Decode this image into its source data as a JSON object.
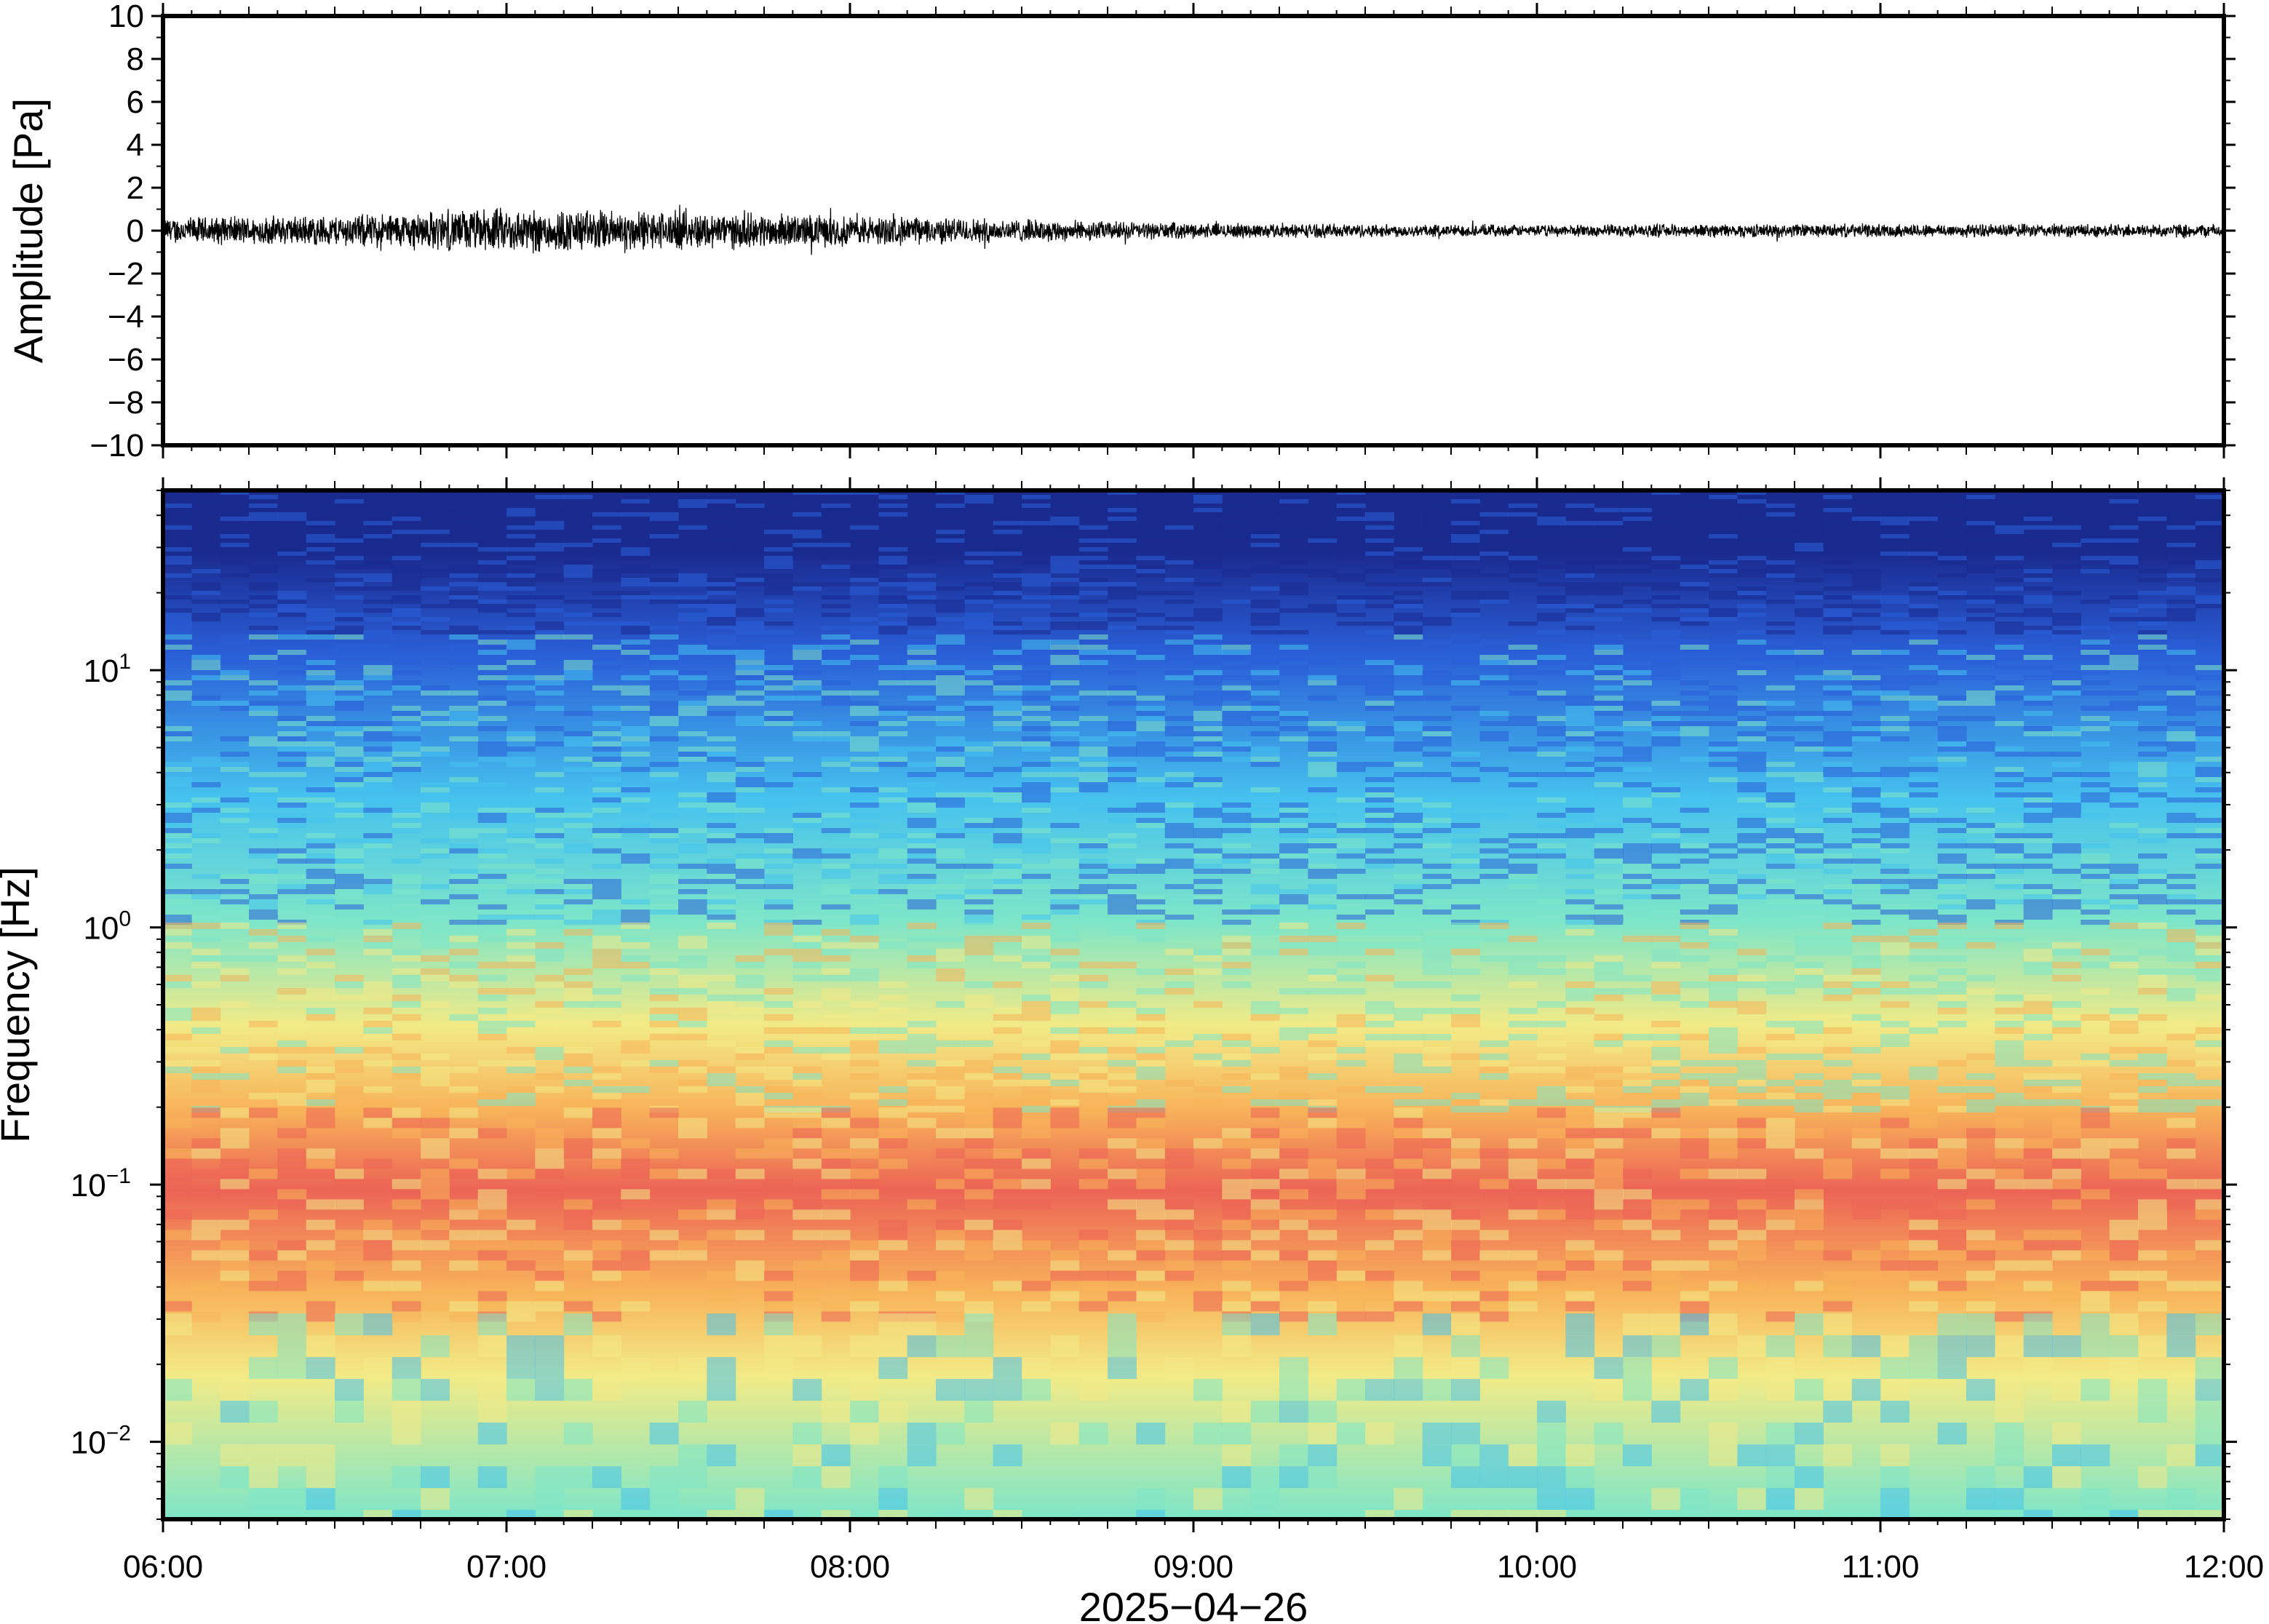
{
  "chart_data": [
    {
      "type": "line",
      "title": "",
      "xlabel": "",
      "ylabel": "Amplitude [Pa]",
      "ylim": [
        -10,
        10
      ],
      "yticks": [
        10,
        8,
        6,
        4,
        2,
        0,
        -2,
        -4,
        -6,
        -8,
        -10
      ],
      "ytick_labels": [
        "10",
        "8",
        "6",
        "4",
        "2",
        "0",
        "−2",
        "−4",
        "−6",
        "−8",
        "−10"
      ],
      "xlim": [
        "06:00",
        "12:00"
      ],
      "grid": false,
      "series": [
        {
          "x_hours": [
            6.0,
            6.5,
            7.0,
            7.5,
            8.0,
            8.5,
            9.0,
            9.5,
            10.0,
            10.5,
            11.0,
            11.5,
            12.0
          ],
          "envelope_pa": [
            0.7,
            0.8,
            1.2,
            1.0,
            0.8,
            0.6,
            0.4,
            0.35,
            0.3,
            0.35,
            0.35,
            0.35,
            0.35
          ],
          "peak_max_pa": 1.8,
          "peak_min_pa": -2.0,
          "color": "#000000"
        }
      ]
    },
    {
      "type": "heatmap",
      "title": "",
      "xlabel": "2025−04−26",
      "ylabel": "Frequency [Hz]",
      "xlim": [
        "06:00",
        "12:00"
      ],
      "xticks": [
        "06:00",
        "07:00",
        "08:00",
        "09:00",
        "10:00",
        "11:00",
        "12:00"
      ],
      "yscale": "log",
      "ylim": [
        0.005,
        50
      ],
      "yticks": [
        0.01,
        0.1,
        1,
        10
      ],
      "ytick_labels": [
        {
          "base": "10",
          "exp": "−2"
        },
        {
          "base": "10",
          "exp": "−1"
        },
        {
          "base": "10",
          "exp": "0"
        },
        {
          "base": "10",
          "exp": "1"
        }
      ],
      "colormap": "rainbow (dark blue = low power, red = high power)",
      "colorbar": false,
      "color_stops": [
        "#1a2a8f",
        "#2a5fd8",
        "#46c2ee",
        "#7ee6c8",
        "#f2ea86",
        "#f8b45a",
        "#ec6455"
      ],
      "grid": false
    }
  ]
}
